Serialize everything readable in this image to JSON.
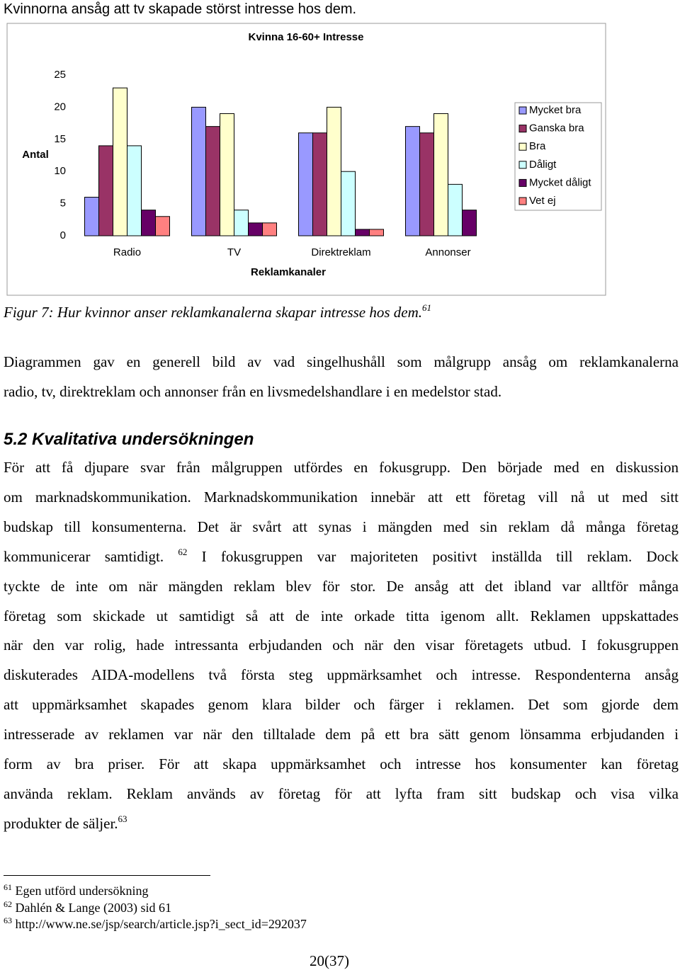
{
  "top_line": "Kvinnorna ansåg att tv skapade störst intresse hos dem.",
  "chart_data": {
    "type": "bar",
    "title": "Kvinna 16-60+ Intresse",
    "x_label": "Reklamkanaler",
    "y_label": "Antal",
    "categories": [
      "Radio",
      "TV",
      "Direktreklam",
      "Annonser"
    ],
    "series": [
      {
        "name": "Mycket bra",
        "color": "#9999ff",
        "values": [
          6,
          20,
          16,
          17
        ]
      },
      {
        "name": "Ganska bra",
        "color": "#993366",
        "values": [
          14,
          17,
          16,
          16
        ]
      },
      {
        "name": "Bra",
        "color": "#ffffcc",
        "values": [
          23,
          19,
          20,
          19
        ]
      },
      {
        "name": "Dåligt",
        "color": "#ccffff",
        "values": [
          14,
          4,
          10,
          8
        ]
      },
      {
        "name": "Mycket dåligt",
        "color": "#660066",
        "values": [
          4,
          2,
          1,
          4
        ]
      },
      {
        "name": "Vet ej",
        "color": "#ff8080",
        "values": [
          3,
          2,
          1,
          null
        ]
      }
    ],
    "ylim": [
      0,
      25
    ],
    "yticks": [
      0,
      5,
      10,
      15,
      20,
      25
    ],
    "grid": false,
    "legend": "right"
  },
  "caption": {
    "text": "Figur 7: Hur kvinnor anser reklamkanalerna skapar intresse hos dem.",
    "note": "61"
  },
  "paragraph_1": [
    "Diagrammen gav en generell bild av vad singelhushåll som målgrupp ansåg om reklamkanalerna",
    "radio, tv, direktreklam och annonser från en livsmedelshandlare i en medelstor stad."
  ],
  "section_heading": "5.2 Kvalitativa undersökningen",
  "paragraph_2": [
    "För att få djupare svar från målgruppen utfördes en fokusgrupp. Den började med en diskussion",
    "om marknadskommunikation. Marknadskommunikation innebär att ett företag vill nå ut med sitt",
    "budskap till konsumenterna. Det är svårt att synas i mängden med sin reklam då många företag",
    {
      "before": "kommunicerar samtidigt.",
      "note": "62",
      "after": "I fokusgruppen var majoriteten positivt inställda till reklam. Dock"
    },
    "tyckte de inte om när mängden reklam blev för stor. De ansåg att det ibland var alltför många",
    "företag som skickade ut samtidigt så att de inte orkade titta igenom allt. Reklamen uppskattades",
    "när den var rolig, hade intressanta erbjudanden och när den visar företagets utbud. I fokusgruppen",
    "diskuterades AIDA-modellens två första steg uppmärksamhet och intresse. Respondenterna ansåg",
    "att uppmärksamhet skapades genom klara bilder och färger i reklamen. Det som gjorde dem",
    "intresserade av reklamen var när den tilltalade dem på ett bra sätt genom lönsamma erbjudanden i",
    "form av bra priser. För att skapa uppmärksamhet och intresse hos konsumenter kan företag",
    "använda reklam. Reklam används av företag för att lyfta fram sitt budskap och visa vilka",
    {
      "text": "produkter de säljer.",
      "note": "63"
    }
  ],
  "footnotes": [
    {
      "number": "61",
      "text": "Egen utförd undersökning"
    },
    {
      "number": "62",
      "text": "Dahlén & Lange (2003) sid 61"
    },
    {
      "number": "63",
      "text": "http://www.ne.se/jsp/search/article.jsp?i_sect_id=292037"
    }
  ],
  "page_number": "20(37)"
}
